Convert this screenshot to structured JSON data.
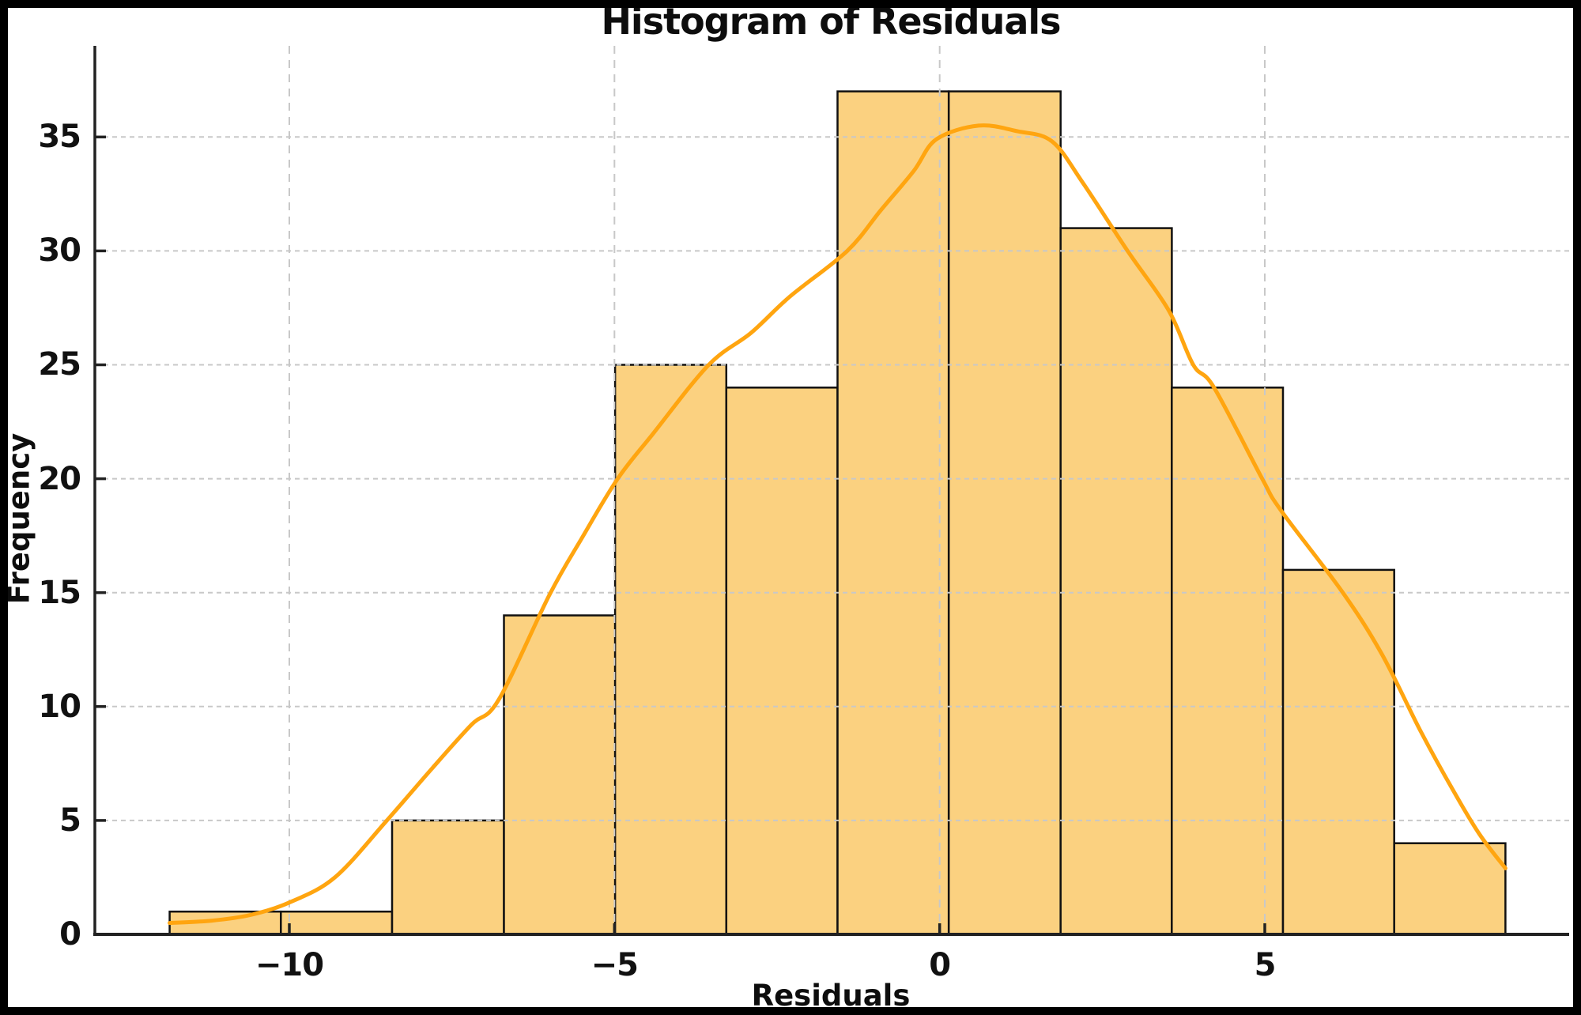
{
  "figure": {
    "background": "#ffffff",
    "border_color": "#000000"
  },
  "chart_data": {
    "type": "bar",
    "subtype": "histogram-with-kde",
    "title": "Histogram of Residuals",
    "xlabel": "Residuals",
    "ylabel": "Frequency",
    "bin_edges": [
      -11.84,
      -10.13,
      -8.42,
      -6.7,
      -4.99,
      -3.28,
      -1.57,
      0.14,
      1.86,
      3.57,
      5.28,
      6.99,
      8.7
    ],
    "counts": [
      1,
      1,
      5,
      14,
      25,
      24,
      37,
      37,
      31,
      24,
      16,
      4
    ],
    "xlim": [
      -12.99,
      9.68
    ],
    "ylim": [
      0,
      39.0
    ],
    "xticks": [
      {
        "value": -10,
        "label": "−10"
      },
      {
        "value": -5,
        "label": "−5"
      },
      {
        "value": 0,
        "label": "0"
      },
      {
        "value": 5,
        "label": "5"
      }
    ],
    "yticks": [
      {
        "value": 0,
        "label": "0"
      },
      {
        "value": 5,
        "label": "5"
      },
      {
        "value": 10,
        "label": "10"
      },
      {
        "value": 15,
        "label": "15"
      },
      {
        "value": 20,
        "label": "20"
      },
      {
        "value": 25,
        "label": "25"
      },
      {
        "value": 30,
        "label": "30"
      },
      {
        "value": 35,
        "label": "35"
      }
    ],
    "grid": {
      "visible": true,
      "style": "dashed",
      "color": "#c8c8c8",
      "above_bars": true
    },
    "legend": {
      "visible": false
    },
    "colors": {
      "bar_fill": "#FBD180",
      "bar_edge": "#111111",
      "kde_line": "#FFA510",
      "spine": "#222222",
      "tick_label": "#111111"
    },
    "kde_curve": {
      "name": "kde-density-curve",
      "points": [
        [
          -11.84,
          0.5
        ],
        [
          -11.2,
          0.6
        ],
        [
          -10.6,
          0.85
        ],
        [
          -10.0,
          1.4
        ],
        [
          -9.3,
          2.5
        ],
        [
          -8.5,
          5.0
        ],
        [
          -7.8,
          7.3
        ],
        [
          -7.2,
          9.2
        ],
        [
          -6.78,
          10.3
        ],
        [
          -6.0,
          14.9
        ],
        [
          -5.5,
          17.4
        ],
        [
          -4.95,
          20.0
        ],
        [
          -4.4,
          22.0
        ],
        [
          -3.55,
          25.0
        ],
        [
          -2.9,
          26.4
        ],
        [
          -2.3,
          28.0
        ],
        [
          -1.42,
          30.0
        ],
        [
          -0.9,
          31.8
        ],
        [
          -0.4,
          33.5
        ],
        [
          -0.05,
          34.9
        ],
        [
          0.6,
          35.5
        ],
        [
          1.2,
          35.25
        ],
        [
          1.73,
          34.8
        ],
        [
          2.2,
          33.0
        ],
        [
          2.89,
          30.0
        ],
        [
          3.52,
          27.4
        ],
        [
          3.9,
          25.0
        ],
        [
          4.22,
          24.0
        ],
        [
          4.96,
          20.0
        ],
        [
          5.25,
          18.6
        ],
        [
          6.2,
          15.0
        ],
        [
          6.8,
          12.3
        ],
        [
          7.4,
          8.9
        ],
        [
          7.9,
          6.3
        ],
        [
          8.3,
          4.4
        ],
        [
          8.7,
          2.9
        ]
      ]
    }
  }
}
